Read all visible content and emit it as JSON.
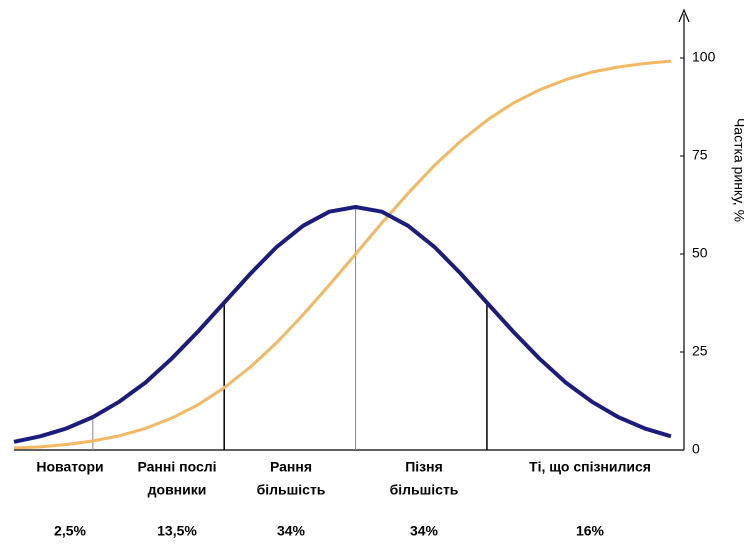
{
  "chart_data": {
    "type": "line",
    "x": [
      -2.6,
      -2.4,
      -2.2,
      -2.0,
      -1.8,
      -1.6,
      -1.4,
      -1.2,
      -1.0,
      -0.8,
      -0.6,
      -0.4,
      -0.2,
      0,
      0.2,
      0.4,
      0.6,
      0.8,
      1.0,
      1.2,
      1.4,
      1.6,
      1.8,
      2.0,
      2.2,
      2.4
    ],
    "series": [
      {
        "color": "#1c1c80",
        "values": [
          2.1,
          3.5,
          5.5,
          8.4,
          12.3,
          17.2,
          23.3,
          30.2,
          37.6,
          45.0,
          51.8,
          57.2,
          60.8,
          62,
          60.8,
          57.2,
          51.8,
          45.0,
          37.6,
          30.2,
          23.3,
          17.2,
          12.3,
          8.4,
          5.5,
          3.5
        ]
      },
      {
        "color": "#f2b862",
        "values": [
          0.5,
          0.8,
          1.4,
          2.3,
          3.6,
          5.5,
          8.1,
          11.5,
          15.9,
          21.2,
          27.4,
          34.5,
          42.1,
          50,
          57.9,
          65.5,
          72.6,
          78.8,
          84.1,
          88.5,
          91.9,
          94.5,
          96.4,
          97.7,
          98.6,
          99.2
        ]
      }
    ],
    "dividers": [
      -2,
      -1,
      0,
      1
    ],
    "xlim": [
      -2.6,
      2.5
    ],
    "ylim": [
      0,
      100
    ],
    "yticks": [
      0,
      25,
      50,
      75,
      100
    ],
    "ylabel": "Частка ринку, %",
    "segments": [
      {
        "label": [
          "Новатори"
        ],
        "value": 2.5,
        "value_label": "2,5%"
      },
      {
        "label": [
          "Ранні послі",
          "довники"
        ],
        "value": 13.5,
        "value_label": "13,5%"
      },
      {
        "label": [
          "Рання",
          "більшість"
        ],
        "value": 34,
        "value_label": "34%"
      },
      {
        "label": [
          "Пізня",
          "більшість"
        ],
        "value": 34,
        "value_label": "34%"
      },
      {
        "label": [
          "Ті, що спізнилися"
        ],
        "value": 16,
        "value_label": "16%"
      }
    ]
  }
}
